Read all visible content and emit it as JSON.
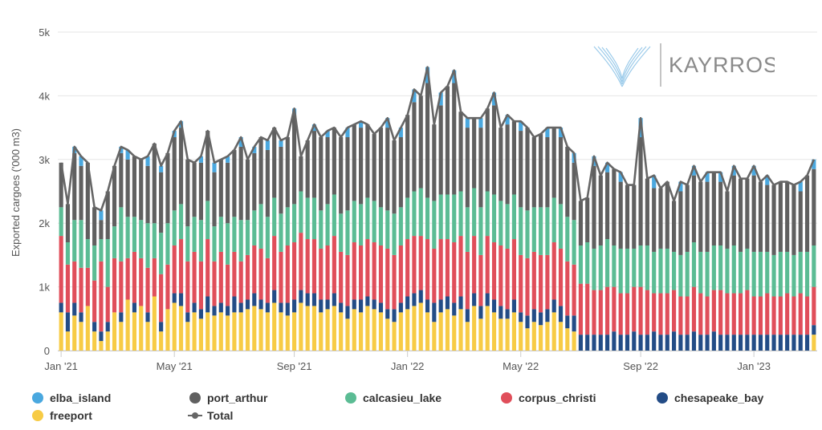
{
  "chart_data": {
    "type": "bar",
    "stacked": true,
    "ylabel": "Exported cargoes ('000 m3)",
    "ylim": [
      0,
      5000
    ],
    "yticks": [
      {
        "v": 0,
        "label": "0"
      },
      {
        "v": 1000,
        "label": "1k"
      },
      {
        "v": 2000,
        "label": "2k"
      },
      {
        "v": 3000,
        "label": "3k"
      },
      {
        "v": 4000,
        "label": "4k"
      },
      {
        "v": 5000,
        "label": "5k"
      }
    ],
    "xticks": [
      {
        "i": 0,
        "label": "Jan '21"
      },
      {
        "i": 17,
        "label": "May '21"
      },
      {
        "i": 35,
        "label": "Sep '21"
      },
      {
        "i": 52,
        "label": "Jan '22"
      },
      {
        "i": 69,
        "label": "May '22"
      },
      {
        "i": 87,
        "label": "Sep '22"
      },
      {
        "i": 104,
        "label": "Jan '23"
      }
    ],
    "grid": true,
    "legend_position": "bottom",
    "series": [
      {
        "name": "freeport",
        "color": "#F7CB45",
        "values": [
          600,
          300,
          550,
          450,
          700,
          300,
          150,
          300,
          600,
          450,
          800,
          600,
          700,
          450,
          850,
          300,
          650,
          750,
          700,
          450,
          600,
          500,
          600,
          550,
          600,
          550,
          600,
          600,
          650,
          700,
          650,
          600,
          750,
          600,
          550,
          600,
          750,
          700,
          700,
          600,
          650,
          700,
          600,
          500,
          650,
          600,
          700,
          650,
          600,
          500,
          450,
          600,
          650,
          700,
          750,
          600,
          450,
          600,
          650,
          550,
          650,
          450,
          700,
          500,
          700,
          600,
          500,
          500,
          600,
          450,
          350,
          450,
          400,
          450,
          600,
          450,
          350,
          300,
          0,
          0,
          0,
          0,
          0,
          0,
          0,
          0,
          0,
          0,
          0,
          0,
          0,
          0,
          0,
          0,
          0,
          0,
          0,
          0,
          0,
          0,
          0,
          0,
          0,
          0,
          0,
          0,
          0,
          0,
          0,
          0,
          0,
          0,
          0,
          250
        ]
      },
      {
        "name": "chesapeake_bay",
        "color": "#234C86",
        "values": [
          150,
          300,
          200,
          150,
          0,
          150,
          150,
          150,
          0,
          150,
          0,
          150,
          0,
          150,
          0,
          150,
          0,
          150,
          200,
          150,
          150,
          150,
          250,
          150,
          150,
          150,
          250,
          150,
          150,
          200,
          150,
          150,
          200,
          150,
          200,
          200,
          200,
          200,
          200,
          200,
          150,
          200,
          150,
          200,
          150,
          200,
          150,
          150,
          150,
          150,
          200,
          150,
          200,
          200,
          200,
          200,
          300,
          200,
          200,
          200,
          200,
          200,
          200,
          200,
          200,
          200,
          200,
          150,
          200,
          150,
          200,
          200,
          200,
          200,
          200,
          250,
          200,
          250,
          250,
          250,
          250,
          250,
          250,
          300,
          250,
          250,
          300,
          250,
          250,
          300,
          250,
          250,
          300,
          250,
          250,
          300,
          250,
          250,
          300,
          250,
          250,
          250,
          250,
          250,
          250,
          250,
          250,
          250,
          250,
          250,
          250,
          250,
          250,
          150
        ]
      },
      {
        "name": "corpus_christi",
        "color": "#E04E5A",
        "values": [
          1050,
          750,
          650,
          700,
          600,
          650,
          1100,
          550,
          850,
          800,
          650,
          800,
          750,
          700,
          600,
          750,
          700,
          750,
          850,
          800,
          800,
          750,
          900,
          700,
          800,
          650,
          700,
          650,
          700,
          750,
          800,
          700,
          850,
          800,
          900,
          900,
          900,
          850,
          850,
          800,
          850,
          900,
          800,
          800,
          900,
          850,
          900,
          900,
          900,
          950,
          850,
          900,
          900,
          900,
          850,
          950,
          850,
          950,
          900,
          950,
          950,
          900,
          900,
          800,
          900,
          900,
          950,
          950,
          950,
          900,
          900,
          900,
          900,
          850,
          900,
          900,
          850,
          800,
          800,
          800,
          700,
          700,
          750,
          700,
          650,
          650,
          700,
          750,
          700,
          600,
          650,
          650,
          650,
          600,
          600,
          700,
          650,
          600,
          650,
          700,
          650,
          650,
          650,
          700,
          600,
          600,
          650,
          600,
          600,
          650,
          600,
          650,
          600,
          600
        ]
      },
      {
        "name": "calcasieu_lake",
        "color": "#5BBC94",
        "values": [
          450,
          350,
          650,
          750,
          450,
          550,
          350,
          750,
          500,
          850,
          650,
          550,
          600,
          700,
          550,
          650,
          650,
          550,
          550,
          550,
          550,
          650,
          600,
          550,
          550,
          650,
          550,
          650,
          550,
          550,
          700,
          650,
          600,
          600,
          600,
          600,
          650,
          650,
          650,
          600,
          650,
          650,
          600,
          700,
          650,
          650,
          650,
          650,
          600,
          600,
          650,
          600,
          650,
          700,
          750,
          650,
          750,
          700,
          700,
          750,
          700,
          700,
          750,
          750,
          700,
          750,
          700,
          700,
          700,
          750,
          750,
          700,
          750,
          750,
          700,
          700,
          700,
          700,
          600,
          650,
          650,
          700,
          750,
          650,
          700,
          700,
          600,
          650,
          700,
          650,
          700,
          700,
          600,
          650,
          700,
          700,
          650,
          700,
          700,
          700,
          700,
          750,
          650,
          650,
          700,
          700,
          650,
          650,
          700,
          650,
          650,
          650,
          700,
          650
        ]
      },
      {
        "name": "port_arthur",
        "color": "#606060",
        "values": [
          700,
          600,
          1050,
          850,
          1200,
          600,
          300,
          750,
          950,
          850,
          900,
          950,
          950,
          900,
          1250,
          950,
          1100,
          1150,
          1200,
          1050,
          850,
          900,
          1100,
          850,
          900,
          950,
          1050,
          1150,
          950,
          900,
          1050,
          1050,
          1100,
          1050,
          1100,
          1400,
          550,
          900,
          1050,
          1150,
          1050,
          1050,
          1200,
          1150,
          1200,
          1200,
          1150,
          1050,
          1250,
          1300,
          1150,
          1100,
          1300,
          1400,
          1450,
          1800,
          1200,
          1400,
          1700,
          1750,
          1250,
          1250,
          1100,
          1250,
          1300,
          1400,
          1150,
          1250,
          1150,
          1200,
          1300,
          1100,
          1150,
          1100,
          1100,
          1050,
          1100,
          900,
          700,
          700,
          1300,
          1100,
          1050,
          1200,
          1050,
          1000,
          1000,
          1700,
          1050,
          1000,
          950,
          1050,
          800,
          1000,
          1050,
          1050,
          1100,
          1100,
          1150,
          1000,
          900,
          1100,
          1150,
          1100,
          1200,
          1100,
          1050,
          1100,
          1100,
          1100,
          1100,
          950,
          1200,
          1200
        ]
      },
      {
        "name": "elba_island",
        "color": "#4AA8DF",
        "values": [
          0,
          0,
          100,
          150,
          0,
          0,
          150,
          0,
          0,
          100,
          150,
          0,
          0,
          150,
          0,
          100,
          0,
          100,
          100,
          0,
          0,
          100,
          0,
          150,
          0,
          100,
          0,
          150,
          0,
          100,
          0,
          150,
          0,
          100,
          0,
          100,
          0,
          0,
          100,
          0,
          100,
          0,
          0,
          150,
          0,
          100,
          0,
          0,
          0,
          150,
          0,
          150,
          0,
          200,
          0,
          250,
          0,
          200,
          0,
          200,
          0,
          150,
          0,
          150,
          0,
          200,
          0,
          150,
          0,
          150,
          0,
          0,
          0,
          150,
          0,
          150,
          0,
          150,
          0,
          0,
          150,
          0,
          150,
          0,
          150,
          0,
          0,
          300,
          0,
          200,
          0,
          0,
          0,
          150,
          0,
          150,
          0,
          150,
          0,
          150,
          0,
          150,
          0,
          0,
          150,
          0,
          150,
          0,
          0,
          0,
          0,
          150,
          0,
          150
        ]
      }
    ],
    "total": {
      "name": "Total",
      "color": "#666666"
    }
  },
  "legend": [
    {
      "label": "elba_island",
      "color": "#4AA8DF",
      "kind": "dot"
    },
    {
      "label": "port_arthur",
      "color": "#606060",
      "kind": "dot"
    },
    {
      "label": "calcasieu_lake",
      "color": "#5BBC94",
      "kind": "dot"
    },
    {
      "label": "corpus_christi",
      "color": "#E04E5A",
      "kind": "dot"
    },
    {
      "label": "chesapeake_bay",
      "color": "#234C86",
      "kind": "dot"
    },
    {
      "label": "freeport",
      "color": "#F7CB45",
      "kind": "dot"
    },
    {
      "label": "Total",
      "color": "#666666",
      "kind": "line"
    }
  ],
  "logo": {
    "text": "KAYRROS"
  }
}
